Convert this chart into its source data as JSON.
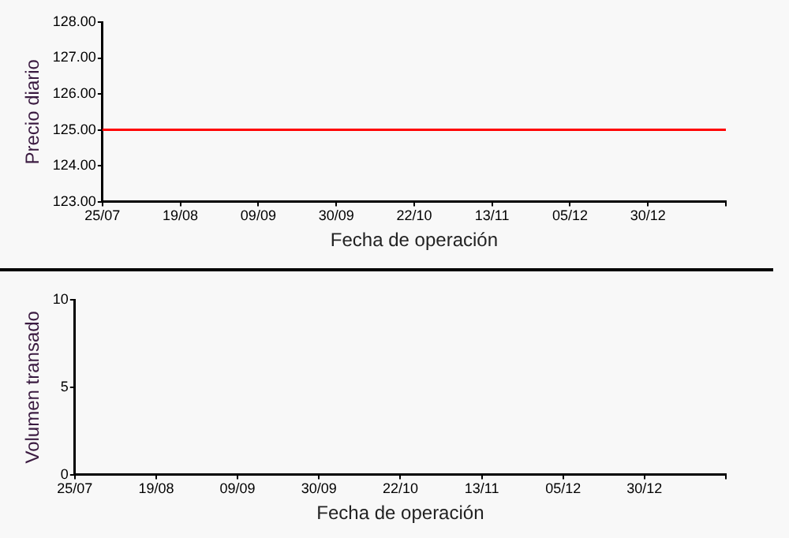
{
  "chart_data": [
    {
      "type": "line",
      "categories": [
        "25/07",
        "19/08",
        "09/09",
        "30/09",
        "22/10",
        "13/11",
        "05/12",
        "30/12",
        null
      ],
      "xlabel": "Fecha de operación",
      "ylabel": "Precio diario",
      "series": [
        {
          "color": "#ff0000",
          "values": [
            125,
            125,
            125,
            125,
            125,
            125,
            125,
            125,
            125
          ]
        }
      ],
      "ylim": [
        123,
        128
      ],
      "yticks": [
        {
          "value": 123,
          "label": "123.00"
        },
        {
          "value": 124,
          "label": "124.00"
        },
        {
          "value": 125,
          "label": "125.00"
        },
        {
          "value": 126,
          "label": "126.00"
        },
        {
          "value": 127,
          "label": "127.00"
        },
        {
          "value": 128,
          "label": "128.00"
        }
      ],
      "grid": false,
      "legend": false,
      "marker": "none"
    },
    {
      "type": "line",
      "categories": [
        "25/07",
        "19/08",
        "09/09",
        "30/09",
        "22/10",
        "13/11",
        "05/12",
        "30/12",
        null
      ],
      "xlabel": "Fecha de operación",
      "ylabel": "Volumen transado",
      "series": [
        {
          "color": "#0000ff",
          "values": [
            null,
            null,
            null,
            null,
            null,
            null,
            null,
            null,
            null
          ]
        }
      ],
      "ylim": [
        0,
        10
      ],
      "yticks": [
        0,
        5,
        10
      ],
      "grid": false,
      "legend": false,
      "marker": "none"
    }
  ]
}
